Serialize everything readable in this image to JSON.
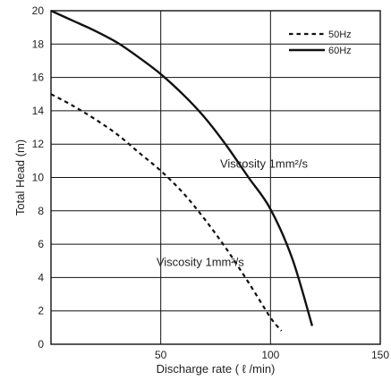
{
  "chart_data": {
    "type": "line",
    "xlabel": "Discharge rate ( ℓ /min)",
    "ylabel": "Total Head (m)",
    "xlim": [
      0,
      150
    ],
    "ylim": [
      0,
      20
    ],
    "xticks": [
      50,
      100,
      150
    ],
    "yticks": [
      0,
      2,
      4,
      6,
      8,
      10,
      12,
      14,
      16,
      18,
      20
    ],
    "grid": true,
    "legend_position": "top-right",
    "series": [
      {
        "name": "50Hz",
        "style": "dashed",
        "color": "#111111",
        "x": [
          0,
          10,
          20,
          30,
          40,
          50,
          60,
          70,
          80,
          90,
          100,
          105
        ],
        "y": [
          15.0,
          14.3,
          13.5,
          12.6,
          11.5,
          10.4,
          9.1,
          7.5,
          5.7,
          3.7,
          1.6,
          0.8
        ]
      },
      {
        "name": "60Hz",
        "style": "solid",
        "color": "#111111",
        "x": [
          0,
          10,
          20,
          30,
          40,
          50,
          60,
          70,
          80,
          90,
          100,
          110,
          119
        ],
        "y": [
          20.0,
          19.4,
          18.8,
          18.1,
          17.2,
          16.2,
          15.0,
          13.6,
          11.9,
          10.0,
          8.1,
          5.1,
          1.1
        ]
      }
    ],
    "annotations": [
      {
        "text": "Viscosity 1mm²/s",
        "x": 97,
        "y": 10.6
      },
      {
        "text": "Viscosity 1mm²/s",
        "x": 68,
        "y": 4.7
      }
    ]
  }
}
